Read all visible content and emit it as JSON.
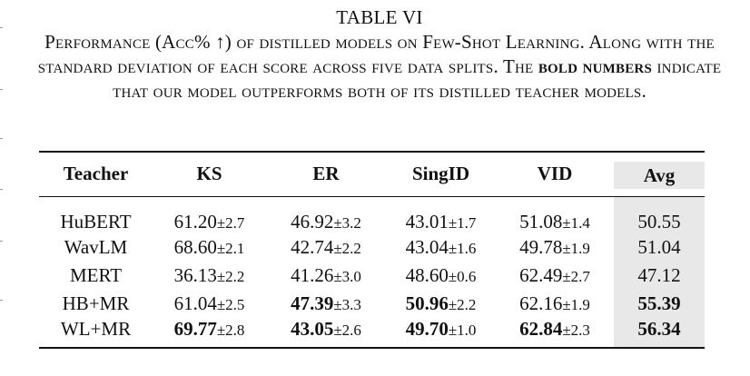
{
  "table": {
    "label": "TABLE VI",
    "caption_parts": [
      {
        "text": "Performance (Acc% ↑) of distilled models on Few-Shot Learning. Along with the standard deviation of each score across five data splits. The ",
        "bold": false
      },
      {
        "text": "bold numbers",
        "bold": true
      },
      {
        "text": " indicate that our model outperforms both of its distilled teacher models.",
        "bold": false
      }
    ],
    "columns": [
      "Teacher",
      "KS",
      "ER",
      "SingID",
      "VID",
      "Avg"
    ],
    "rows": [
      {
        "teacher": "HuBERT",
        "cells": [
          {
            "v": "61.20",
            "sd": "±2.7",
            "bold": false
          },
          {
            "v": "46.92",
            "sd": "±3.2",
            "bold": false
          },
          {
            "v": "43.01",
            "sd": "±1.7",
            "bold": false
          },
          {
            "v": "51.08",
            "sd": "±1.4",
            "bold": false
          }
        ],
        "avg": "50.55",
        "avg_bold": false
      },
      {
        "teacher": "WavLM",
        "cells": [
          {
            "v": "68.60",
            "sd": "±2.1",
            "bold": false
          },
          {
            "v": "42.74",
            "sd": "±2.2",
            "bold": false
          },
          {
            "v": "43.04",
            "sd": "±1.6",
            "bold": false
          },
          {
            "v": "49.78",
            "sd": "±1.9",
            "bold": false
          }
        ],
        "avg": "51.04",
        "avg_bold": false
      },
      {
        "teacher": "MERT",
        "cells": [
          {
            "v": "36.13",
            "sd": "±2.2",
            "bold": false
          },
          {
            "v": "41.26",
            "sd": "±3.0",
            "bold": false
          },
          {
            "v": "48.60",
            "sd": "±0.6",
            "bold": false
          },
          {
            "v": "62.49",
            "sd": "±2.7",
            "bold": false
          }
        ],
        "avg": "47.12",
        "avg_bold": false
      },
      {
        "teacher": "HB+MR",
        "cells": [
          {
            "v": "61.04",
            "sd": "±2.5",
            "bold": false
          },
          {
            "v": "47.39",
            "sd": "±3.3",
            "bold": true
          },
          {
            "v": "50.96",
            "sd": "±2.2",
            "bold": true
          },
          {
            "v": "62.16",
            "sd": "±1.9",
            "bold": false
          }
        ],
        "avg": "55.39",
        "avg_bold": true
      },
      {
        "teacher": "WL+MR",
        "cells": [
          {
            "v": "69.77",
            "sd": "±2.8",
            "bold": true
          },
          {
            "v": "43.05",
            "sd": "±2.6",
            "bold": true
          },
          {
            "v": "49.70",
            "sd": "±1.0",
            "bold": true
          },
          {
            "v": "62.84",
            "sd": "±2.3",
            "bold": true
          }
        ],
        "avg": "56.34",
        "avg_bold": true
      }
    ]
  }
}
